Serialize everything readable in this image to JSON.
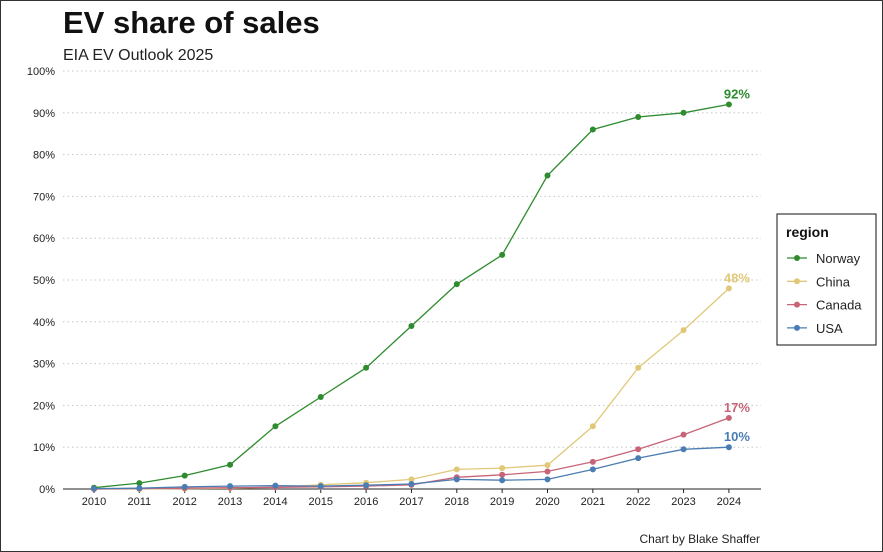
{
  "chart_data": {
    "type": "line",
    "title": "EV share of sales",
    "subtitle": "EIA EV Outlook 2025",
    "caption": "Chart by Blake Shaffer",
    "x": [
      "2010",
      "2011",
      "2012",
      "2013",
      "2014",
      "2015",
      "2016",
      "2017",
      "2018",
      "2019",
      "2020",
      "2021",
      "2022",
      "2023",
      "2024"
    ],
    "ylim": [
      0,
      100
    ],
    "y_ticks": [
      "0%",
      "10%",
      "20%",
      "30%",
      "40%",
      "50%",
      "60%",
      "70%",
      "80%",
      "90%",
      "100%"
    ],
    "grid": "horizontal dotted",
    "legend": {
      "title": "region",
      "position": "right"
    },
    "series": [
      {
        "name": "Norway",
        "color": "#2e8b2e",
        "values": [
          0.3,
          1.4,
          3.2,
          5.8,
          15,
          22,
          29,
          39,
          49,
          56,
          75,
          86,
          89,
          90,
          92
        ],
        "end_label": "92%"
      },
      {
        "name": "China",
        "color": "#e0c878",
        "values": [
          0,
          0,
          0.1,
          0.2,
          0.4,
          1.0,
          1.5,
          2.3,
          4.7,
          5.0,
          5.7,
          15,
          29,
          38,
          48
        ],
        "end_label": "48%"
      },
      {
        "name": "Canada",
        "color": "#c86478",
        "values": [
          0,
          0.1,
          0.2,
          0.3,
          0.4,
          0.5,
          0.7,
          1.0,
          2.8,
          3.4,
          4.2,
          6.5,
          9.5,
          13,
          17
        ],
        "end_label": "17%"
      },
      {
        "name": "USA",
        "color": "#4a7db3",
        "values": [
          0.1,
          0.2,
          0.5,
          0.7,
          0.8,
          0.7,
          0.9,
          1.2,
          2.3,
          2.1,
          2.3,
          4.7,
          7.4,
          9.5,
          10
        ],
        "end_label": "10%"
      }
    ]
  }
}
